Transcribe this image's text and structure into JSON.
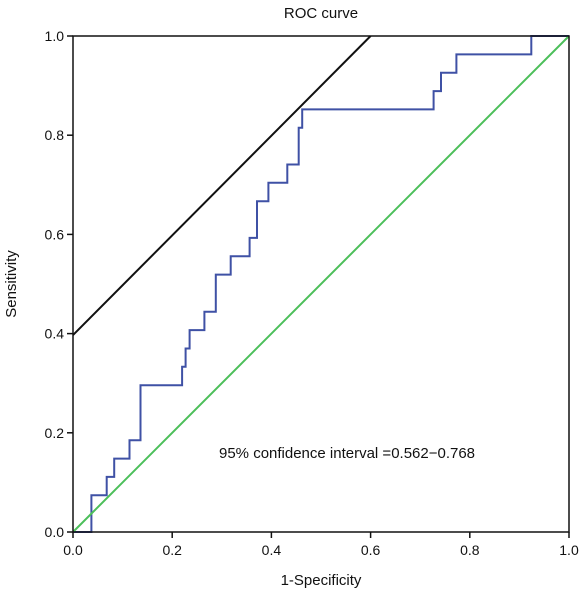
{
  "chart_data": {
    "type": "line",
    "title": "ROC curve",
    "xlabel": "1-Specificity",
    "ylabel": "Sensitivity",
    "xlim": [
      0,
      1
    ],
    "ylim": [
      0,
      1
    ],
    "x_ticks": [
      "0.0",
      "0.2",
      "0.4",
      "0.6",
      "0.8",
      "1.0"
    ],
    "y_ticks": [
      "0.0",
      "0.2",
      "0.4",
      "0.6",
      "0.8",
      "1.0"
    ],
    "grid": false,
    "annotation": "95% confidence interval =0.562−0.768",
    "series": [
      {
        "color": "#3f51a5",
        "style": "step",
        "x": [
          0,
          0.037,
          0.037,
          0.068,
          0.068,
          0.083,
          0.083,
          0.114,
          0.114,
          0.136,
          0.136,
          0.22,
          0.22,
          0.227,
          0.227,
          0.235,
          0.235,
          0.265,
          0.265,
          0.288,
          0.288,
          0.318,
          0.318,
          0.356,
          0.356,
          0.371,
          0.371,
          0.394,
          0.394,
          0.432,
          0.432,
          0.455,
          0.455,
          0.462,
          0.462,
          0.727,
          0.727,
          0.742,
          0.742,
          0.773,
          0.773,
          0.924,
          0.924,
          1.0
        ],
        "y": [
          0,
          0,
          0.074,
          0.074,
          0.111,
          0.111,
          0.148,
          0.148,
          0.185,
          0.185,
          0.296,
          0.296,
          0.333,
          0.333,
          0.37,
          0.37,
          0.407,
          0.407,
          0.444,
          0.444,
          0.519,
          0.519,
          0.556,
          0.556,
          0.593,
          0.593,
          0.667,
          0.667,
          0.704,
          0.704,
          0.741,
          0.741,
          0.815,
          0.815,
          0.852,
          0.852,
          0.889,
          0.889,
          0.926,
          0.926,
          0.963,
          0.963,
          1.0,
          1.0
        ]
      },
      {
        "color": "#4cbf5a",
        "style": "line",
        "x": [
          0,
          1
        ],
        "y": [
          0,
          1
        ]
      },
      {
        "color": "#111111",
        "style": "line",
        "x": [
          0,
          0.6
        ],
        "y": [
          0.397,
          1.0
        ]
      }
    ]
  }
}
